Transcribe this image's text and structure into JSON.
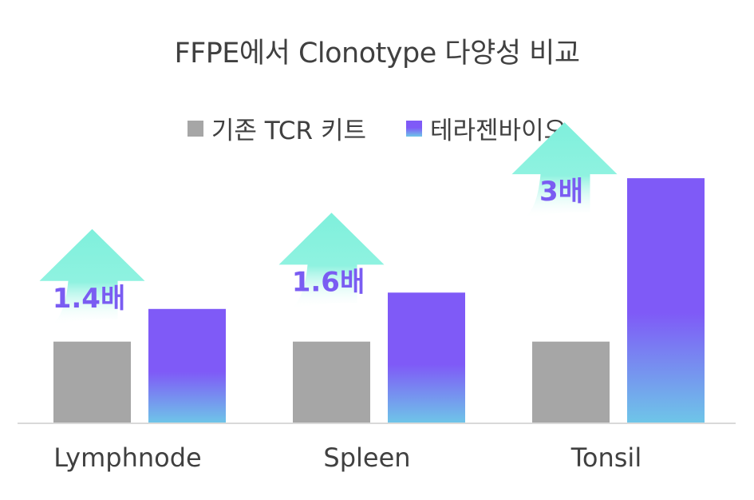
{
  "chart_data": {
    "type": "bar",
    "title": "FFPE에서 Clonotype 다양성 비교",
    "categories": [
      "Lymphnode",
      "Spleen",
      "Tonsil"
    ],
    "series": [
      {
        "name": "기존 TCR 키트",
        "values": [
          1.0,
          1.0,
          1.0
        ],
        "color": "#a6a6a6"
      },
      {
        "name": "테라젠바이오",
        "values": [
          1.4,
          1.6,
          3.0
        ],
        "color": "#7f5af7"
      }
    ],
    "annotations": [
      "1.4배",
      "1.6배",
      "3배"
    ],
    "ylim": [
      0,
      3.05
    ],
    "grid": false,
    "legend_position": "top-center",
    "colors": {
      "arrow": "#7ff0dc",
      "bar_gradient_bottom": "#6ec6e8",
      "annotation_text": "#7a5cf2"
    }
  }
}
